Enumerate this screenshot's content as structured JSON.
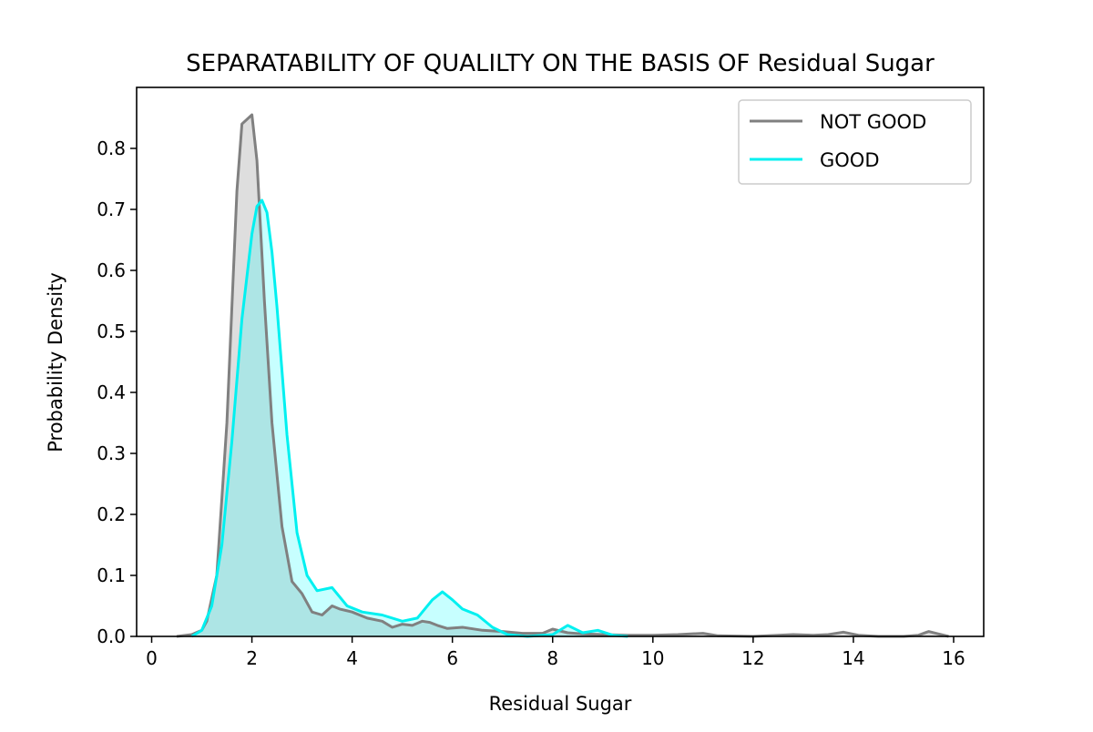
{
  "chart_data": {
    "type": "area",
    "title": "SEPARATABILITY OF QUALILTY ON THE BASIS OF Residual Sugar",
    "xlabel": "Residual Sugar",
    "ylabel": "Probability Density",
    "xlim": [
      -0.3,
      16.6
    ],
    "ylim": [
      0.0,
      0.9
    ],
    "xticks": [
      0,
      2,
      4,
      6,
      8,
      10,
      12,
      14,
      16
    ],
    "xtick_labels": [
      "0",
      "2",
      "4",
      "6",
      "8",
      "10",
      "12",
      "14",
      "16"
    ],
    "yticks": [
      0.0,
      0.1,
      0.2,
      0.3,
      0.4,
      0.5,
      0.6,
      0.7,
      0.8
    ],
    "ytick_labels": [
      "0.0",
      "0.1",
      "0.2",
      "0.3",
      "0.4",
      "0.5",
      "0.6",
      "0.7",
      "0.8"
    ],
    "grid": false,
    "legend_position": "top-right",
    "series": [
      {
        "name": "NOT GOOD",
        "color": "#808080",
        "fill": "#d3d3d3",
        "fill_opacity": 0.75,
        "x": [
          0.5,
          0.8,
          1.0,
          1.1,
          1.3,
          1.5,
          1.7,
          1.8,
          2.0,
          2.1,
          2.25,
          2.4,
          2.6,
          2.8,
          3.0,
          3.2,
          3.4,
          3.6,
          3.75,
          4.0,
          4.3,
          4.6,
          4.8,
          5.0,
          5.2,
          5.4,
          5.55,
          5.7,
          5.9,
          6.2,
          6.6,
          7.0,
          7.4,
          7.8,
          8.0,
          8.3,
          8.6,
          9.0,
          9.5,
          10.0,
          10.5,
          11.0,
          11.3,
          12.0,
          12.8,
          13.2,
          13.5,
          13.8,
          14.1,
          14.5,
          15.0,
          15.3,
          15.5,
          15.7,
          15.9
        ],
        "y": [
          0.0,
          0.003,
          0.01,
          0.025,
          0.1,
          0.35,
          0.73,
          0.84,
          0.855,
          0.78,
          0.55,
          0.35,
          0.18,
          0.09,
          0.07,
          0.04,
          0.035,
          0.05,
          0.045,
          0.04,
          0.03,
          0.025,
          0.015,
          0.02,
          0.018,
          0.025,
          0.023,
          0.018,
          0.013,
          0.015,
          0.01,
          0.008,
          0.005,
          0.005,
          0.012,
          0.006,
          0.004,
          0.003,
          0.002,
          0.002,
          0.003,
          0.005,
          0.001,
          0.0,
          0.003,
          0.002,
          0.003,
          0.007,
          0.002,
          0.0,
          0.0,
          0.002,
          0.008,
          0.004,
          0.0
        ]
      },
      {
        "name": "GOOD",
        "color": "#00f0f0",
        "fill": "#00ffff",
        "fill_opacity": 0.22,
        "x": [
          0.8,
          1.0,
          1.2,
          1.4,
          1.6,
          1.8,
          2.0,
          2.1,
          2.2,
          2.3,
          2.4,
          2.5,
          2.7,
          2.9,
          3.1,
          3.3,
          3.6,
          3.9,
          4.2,
          4.6,
          5.0,
          5.3,
          5.6,
          5.8,
          6.0,
          6.2,
          6.5,
          6.8,
          7.1,
          7.5,
          8.0,
          8.3,
          8.6,
          8.9,
          9.2,
          9.5
        ],
        "y": [
          0.0,
          0.01,
          0.05,
          0.15,
          0.32,
          0.52,
          0.66,
          0.705,
          0.715,
          0.695,
          0.63,
          0.54,
          0.33,
          0.17,
          0.1,
          0.075,
          0.08,
          0.05,
          0.04,
          0.035,
          0.025,
          0.03,
          0.06,
          0.073,
          0.06,
          0.045,
          0.035,
          0.015,
          0.003,
          0.0,
          0.003,
          0.018,
          0.006,
          0.01,
          0.002,
          0.0
        ]
      }
    ]
  }
}
